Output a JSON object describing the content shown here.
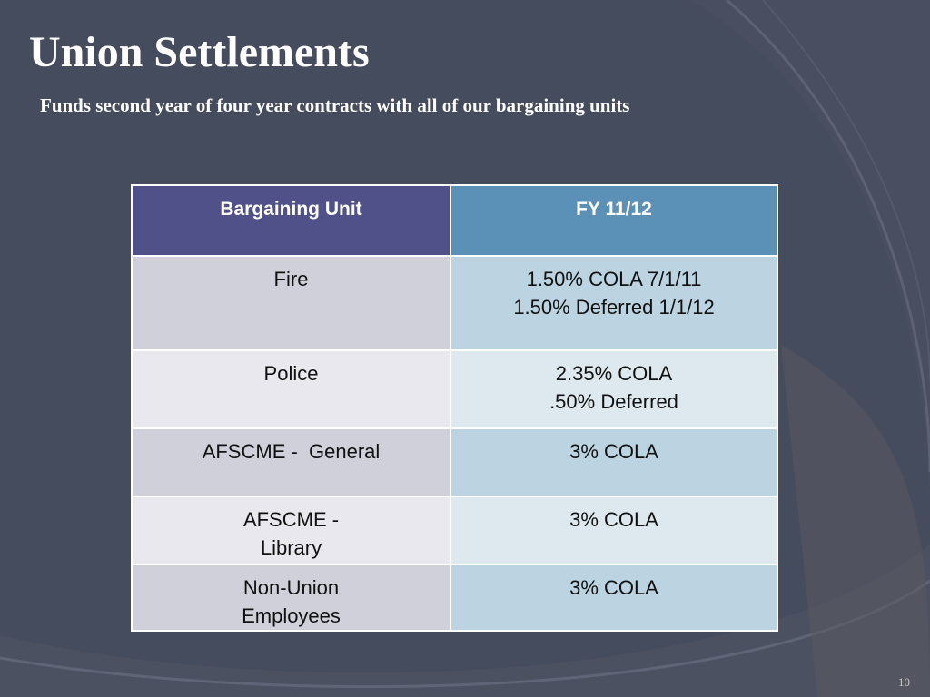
{
  "slide": {
    "title": "Union Settlements",
    "subtitle": "Funds second year of four year contracts with all of our bargaining units",
    "page_number": "10"
  },
  "table": {
    "headers": [
      "Bargaining Unit",
      "FY 11/12"
    ],
    "rows": [
      {
        "unit": [
          "Fire"
        ],
        "value": [
          "1.50% COLA 7/1/11",
          "1.50% Deferred 1/1/12"
        ]
      },
      {
        "unit": [
          "Police"
        ],
        "value": [
          "2.35% COLA",
          ".50% Deferred"
        ]
      },
      {
        "unit": [
          "AFSCME -  General"
        ],
        "value": [
          "3% COLA"
        ]
      },
      {
        "unit": [
          "AFSCME -",
          "Library"
        ],
        "value": [
          "3% COLA"
        ]
      },
      {
        "unit": [
          "Non-Union",
          "Employees"
        ],
        "value": [
          "3% COLA"
        ]
      }
    ]
  },
  "colors": {
    "background": "#454c5e",
    "header_unit": "#515189",
    "header_fy": "#5b91b6",
    "row_odd_unit": "#cfd0da",
    "row_odd_value": "#bcd4e2",
    "row_even_unit": "#e8e8ee",
    "row_even_value": "#dde8ef"
  }
}
